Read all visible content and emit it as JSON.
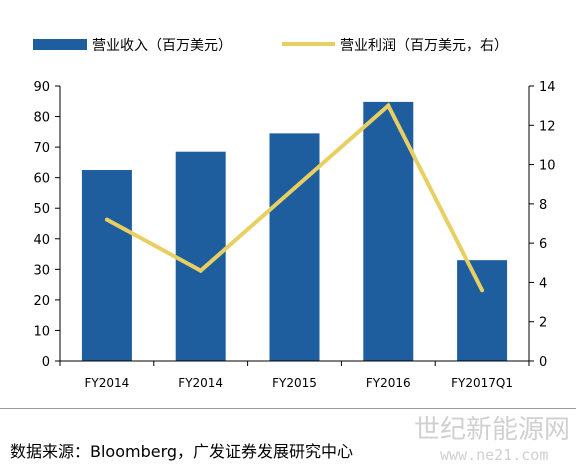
{
  "chart_data": {
    "type": "bar",
    "categories": [
      "FY2014",
      "FY2014",
      "FY2015",
      "FY2016",
      "FY2017Q1"
    ],
    "series": [
      {
        "name": "营业收入（百万美元）",
        "type": "bar",
        "axis": "left",
        "values": [
          62.5,
          68.5,
          74.5,
          84.8,
          33.0
        ]
      },
      {
        "name": "营业利润（百万美元，右）",
        "type": "line",
        "axis": "right",
        "values": [
          7.2,
          4.6,
          8.8,
          13.0,
          3.6
        ]
      }
    ],
    "y_left": {
      "lim": [
        0,
        90
      ],
      "ticks": [
        "0",
        "10",
        "20",
        "30",
        "40",
        "50",
        "60",
        "70",
        "80",
        "90"
      ]
    },
    "y_right": {
      "lim": [
        0,
        14
      ],
      "ticks": [
        "0",
        "2",
        "4",
        "6",
        "8",
        "10",
        "12",
        "14"
      ]
    },
    "grid": false,
    "legend_position": "top",
    "colors": {
      "bar": "#1f5e9e",
      "line": "#e8cf62",
      "axis": "#000000"
    }
  },
  "source": "数据来源：Bloomberg，广发证券发展研究中心",
  "watermark": {
    "text": "世纪新能源网",
    "url": "www.ne21.com"
  }
}
